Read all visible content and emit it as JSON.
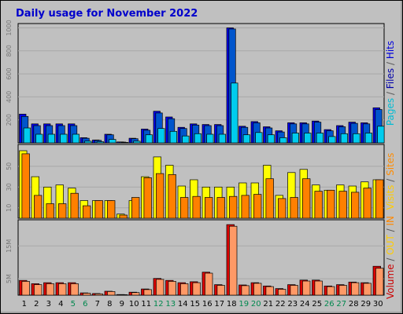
{
  "chart_data": {
    "title": "Daily usage for November 2022",
    "type": "bar",
    "x": [
      "1",
      "2",
      "3",
      "4",
      "5",
      "6",
      "7",
      "8",
      "9",
      "10",
      "11",
      "12",
      "13",
      "14",
      "15",
      "16",
      "17",
      "18",
      "19",
      "20",
      "21",
      "22",
      "23",
      "24",
      "25",
      "26",
      "27",
      "28",
      "29",
      "30"
    ],
    "weekend_days": [
      "5",
      "6",
      "12",
      "13",
      "19",
      "20",
      "26",
      "27"
    ],
    "colors": {
      "background": "#c0c0c0",
      "plot_bg": "#c0c0c0",
      "weekday_label": "#000000",
      "weekend_label": "#00884e",
      "title": "#0000cc",
      "grid": "#a8a8a8"
    },
    "panels": [
      {
        "id": "requests",
        "yticks": [
          200,
          400,
          600,
          800,
          1000
        ],
        "ylim": [
          0,
          1010
        ],
        "legend": [
          {
            "text": "Pages",
            "color": "#00bcd4"
          },
          {
            "text": " / ",
            "color": "#555555"
          },
          {
            "text": "Files",
            "color": "#0000aa"
          },
          {
            "text": " / ",
            "color": "#555555"
          },
          {
            "text": "Hits",
            "color": "#0000dd"
          }
        ],
        "series": [
          {
            "name": "Hits",
            "color": "#0000ee",
            "values": [
              250,
              165,
              165,
              165,
              165,
              45,
              25,
              75,
              8,
              40,
              120,
              275,
              225,
              135,
              165,
              160,
              160,
              1000,
              145,
              185,
              140,
              105,
              175,
              175,
              190,
              115,
              150,
              180,
              175,
              305
            ]
          },
          {
            "name": "Files",
            "color": "#0055cc",
            "values": [
              230,
              150,
              150,
              150,
              150,
              40,
              22,
              70,
              7,
              36,
              110,
              260,
              210,
              125,
              155,
              150,
              150,
              990,
              135,
              175,
              130,
              95,
              165,
              165,
              180,
              105,
              140,
              170,
              165,
              290
            ]
          },
          {
            "name": "Pages",
            "color": "#00ccee",
            "values": [
              130,
              75,
              75,
              75,
              75,
              15,
              10,
              30,
              4,
              15,
              70,
              125,
              100,
              60,
              80,
              75,
              75,
              520,
              70,
              90,
              70,
              45,
              85,
              85,
              85,
              55,
              80,
              80,
              85,
              145
            ]
          }
        ]
      },
      {
        "id": "visits",
        "yticks": [
          10,
          30,
          50
        ],
        "ylim": [
          0,
          68
        ],
        "legend": [
          {
            "text": "Visits",
            "color": "#ffcc00"
          },
          {
            "text": " / ",
            "color": "#555555"
          },
          {
            "text": "Sites",
            "color": "#ff8c00"
          }
        ],
        "series": [
          {
            "name": "Visits",
            "color": "#ffff00",
            "values": [
              65,
              40,
              30,
              32,
              29,
              17,
              17,
              17,
              4,
              17,
              40,
              59,
              51,
              31,
              37,
              30,
              30,
              30,
              34,
              34,
              51,
              22,
              44,
              47,
              32,
              27,
              32,
              31,
              35,
              37
            ]
          },
          {
            "name": "Sites",
            "color": "#ff8000",
            "values": [
              62,
              22,
              14,
              14,
              24,
              12,
              17,
              17,
              3,
              20,
              39,
              43,
              42,
              20,
              21,
              20,
              20,
              21,
              22,
              23,
              38,
              19,
              20,
              38,
              26,
              27,
              26,
              25,
              29,
              37
            ]
          }
        ]
      },
      {
        "id": "volume",
        "yticks": [
          5,
          15
        ],
        "ylim": [
          0,
          22
        ],
        "legend": [
          {
            "text": "Volume",
            "color": "#cc0000"
          },
          {
            "text": " / ",
            "color": "#555555"
          },
          {
            "text": "OUT",
            "color": "#ffcc00"
          },
          {
            "text": " / ",
            "color": "#555555"
          },
          {
            "text": "IN",
            "color": "#ff8800"
          }
        ],
        "series": [
          {
            "name": "Volume",
            "color": "#dd0000",
            "values": [
              4.5,
              3.5,
              3.8,
              3.8,
              3.8,
              0.7,
              0.5,
              1.2,
              0.2,
              0.9,
              1.9,
              5.1,
              4.5,
              3.8,
              4.1,
              7.0,
              3.2,
              21.5,
              3.1,
              3.8,
              2.8,
              2.0,
              3.2,
              4.6,
              4.6,
              2.8,
              3.2,
              4.0,
              3.8,
              8.8
            ]
          },
          {
            "name": "IN",
            "color": "#ff9966",
            "values": [
              4.2,
              3.2,
              3.5,
              3.5,
              3.5,
              0.6,
              0.4,
              1.1,
              0.15,
              0.8,
              1.7,
              4.8,
              4.2,
              3.5,
              3.8,
              6.7,
              3.0,
              21.0,
              2.9,
              3.6,
              2.6,
              1.8,
              3.0,
              4.3,
              4.3,
              2.6,
              3.0,
              3.8,
              3.6,
              8.2
            ]
          }
        ]
      }
    ]
  }
}
